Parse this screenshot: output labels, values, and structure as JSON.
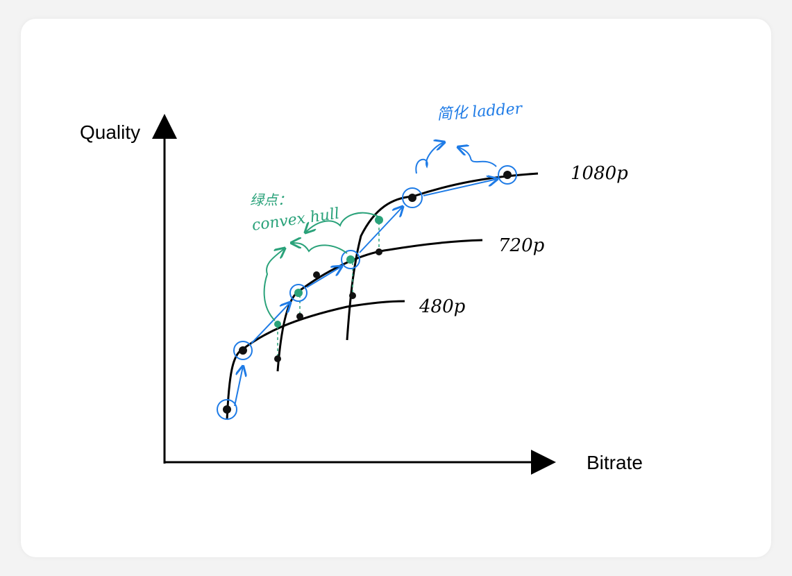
{
  "axes": {
    "y_label": "Quality",
    "x_label": "Bitrate"
  },
  "curves": [
    {
      "label": "1080p"
    },
    {
      "label": "720p"
    },
    {
      "label": "480p"
    }
  ],
  "annotations": {
    "hull_title": "绿点：",
    "hull_text": "convex hull",
    "ladder_text": "简化 ladder"
  }
}
